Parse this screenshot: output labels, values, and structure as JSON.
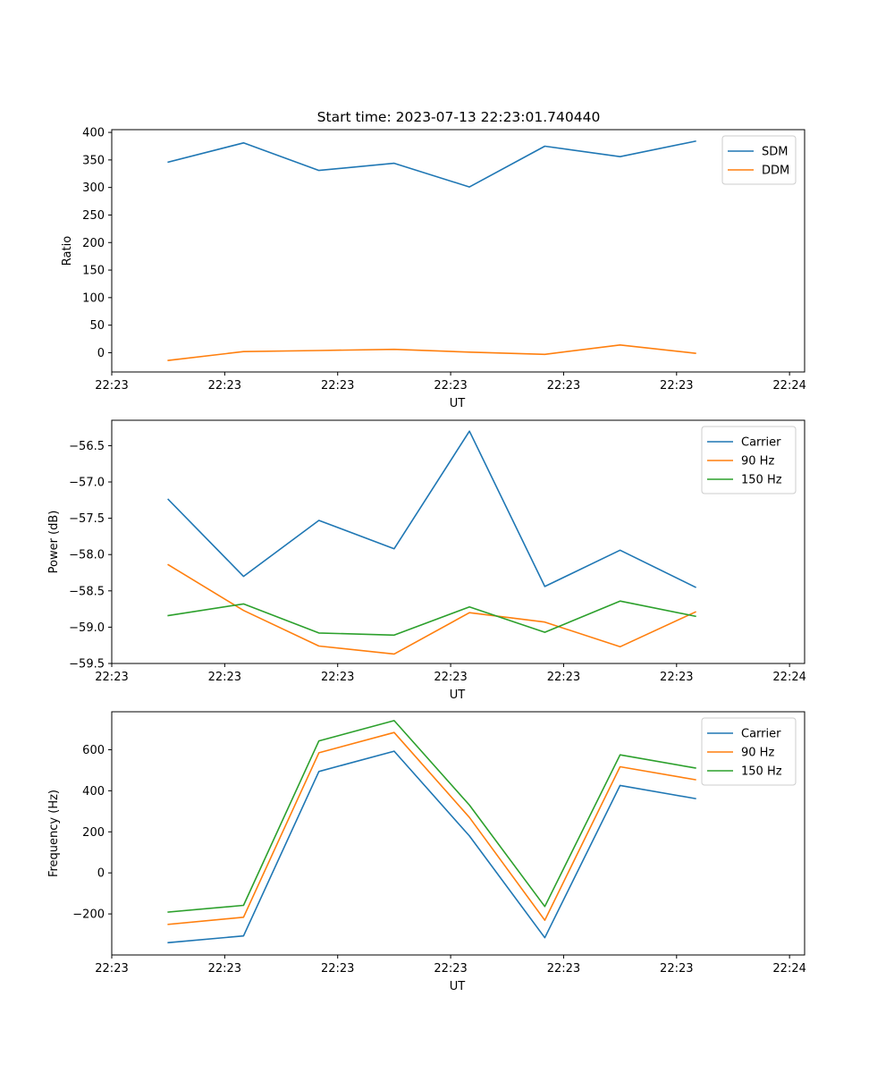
{
  "figure_title": "Start time: 2023-07-13 22:23:01.740440",
  "colors": {
    "blue": "#1f77b4",
    "orange": "#ff7f0e",
    "green": "#2ca02c"
  },
  "chart_data": [
    {
      "type": "line",
      "title": "Start time: 2023-07-13 22:23:01.740440",
      "xlabel": "UT",
      "ylabel": "Ratio",
      "xlim": [
        0,
        9.2
      ],
      "ylim": [
        -35,
        405
      ],
      "x": [
        0.75,
        1.75,
        2.75,
        3.75,
        4.75,
        5.75,
        6.75,
        7.75
      ],
      "xticks": [
        {
          "value": 0,
          "label": "22:23"
        },
        {
          "value": 1.5,
          "label": "22:23"
        },
        {
          "value": 3,
          "label": "22:23"
        },
        {
          "value": 4.5,
          "label": "22:23"
        },
        {
          "value": 6,
          "label": "22:23"
        },
        {
          "value": 7.5,
          "label": "22:23"
        },
        {
          "value": 9,
          "label": "22:24"
        }
      ],
      "yticks": [
        {
          "value": 400,
          "label": "400"
        },
        {
          "value": 350,
          "label": "350"
        },
        {
          "value": 300,
          "label": "300"
        },
        {
          "value": 250,
          "label": "250"
        },
        {
          "value": 200,
          "label": "200"
        },
        {
          "value": 150,
          "label": "150"
        },
        {
          "value": 100,
          "label": "100"
        },
        {
          "value": 50,
          "label": "50"
        },
        {
          "value": 0,
          "label": "0"
        }
      ],
      "legend": "top-right",
      "series": [
        {
          "name": "SDM",
          "color": "blue",
          "values": [
            346,
            381,
            331,
            344,
            301,
            375,
            356,
            384
          ]
        },
        {
          "name": "DDM",
          "color": "orange",
          "values": [
            -14,
            2,
            4,
            6,
            1,
            -3,
            14,
            -1
          ]
        }
      ]
    },
    {
      "type": "line",
      "xlabel": "UT",
      "ylabel": "Power (dB)",
      "xlim": [
        0,
        9.2
      ],
      "ylim": [
        -59.5,
        -56.15
      ],
      "x": [
        0.75,
        1.75,
        2.75,
        3.75,
        4.75,
        5.75,
        6.75,
        7.75
      ],
      "xticks": [
        {
          "value": 0,
          "label": "22:23"
        },
        {
          "value": 1.5,
          "label": "22:23"
        },
        {
          "value": 3,
          "label": "22:23"
        },
        {
          "value": 4.5,
          "label": "22:23"
        },
        {
          "value": 6,
          "label": "22:23"
        },
        {
          "value": 7.5,
          "label": "22:23"
        },
        {
          "value": 9,
          "label": "22:24"
        }
      ],
      "yticks": [
        {
          "value": -56.5,
          "label": "−56.5"
        },
        {
          "value": -57.0,
          "label": "−57.0"
        },
        {
          "value": -57.5,
          "label": "−57.5"
        },
        {
          "value": -58.0,
          "label": "−58.0"
        },
        {
          "value": -58.5,
          "label": "−58.5"
        },
        {
          "value": -59.0,
          "label": "−59.0"
        },
        {
          "value": -59.5,
          "label": "−59.5"
        }
      ],
      "legend": "top-right",
      "series": [
        {
          "name": "Carrier",
          "color": "blue",
          "values": [
            -57.24,
            -58.3,
            -57.53,
            -57.92,
            -56.3,
            -58.44,
            -57.94,
            -58.45
          ]
        },
        {
          "name": "90 Hz",
          "color": "orange",
          "values": [
            -58.14,
            -58.77,
            -59.26,
            -59.37,
            -58.8,
            -58.93,
            -59.27,
            -58.79
          ]
        },
        {
          "name": "150 Hz",
          "color": "green",
          "values": [
            -58.84,
            -58.68,
            -59.08,
            -59.11,
            -58.72,
            -59.07,
            -58.64,
            -58.85
          ]
        }
      ]
    },
    {
      "type": "line",
      "xlabel": "UT",
      "ylabel": "Frequency (Hz)",
      "xlim": [
        0,
        9.2
      ],
      "ylim": [
        -400,
        785
      ],
      "x": [
        0.75,
        1.75,
        2.75,
        3.75,
        4.75,
        5.75,
        6.75,
        7.75
      ],
      "xticks": [
        {
          "value": 0,
          "label": "22:23"
        },
        {
          "value": 1.5,
          "label": "22:23"
        },
        {
          "value": 3,
          "label": "22:23"
        },
        {
          "value": 4.5,
          "label": "22:23"
        },
        {
          "value": 6,
          "label": "22:23"
        },
        {
          "value": 7.5,
          "label": "22:23"
        },
        {
          "value": 9,
          "label": "22:24"
        }
      ],
      "yticks": [
        {
          "value": 600,
          "label": "600"
        },
        {
          "value": 400,
          "label": "400"
        },
        {
          "value": 200,
          "label": "200"
        },
        {
          "value": 0,
          "label": "0"
        },
        {
          "value": -200,
          "label": "−200"
        }
      ],
      "legend": "top-right",
      "series": [
        {
          "name": "Carrier",
          "color": "blue",
          "values": [
            -340,
            -307,
            494,
            593,
            180,
            -316,
            426,
            362
          ]
        },
        {
          "name": "90 Hz",
          "color": "orange",
          "values": [
            -251,
            -216,
            585,
            684,
            270,
            -231,
            517,
            454
          ]
        },
        {
          "name": "150 Hz",
          "color": "green",
          "values": [
            -191,
            -158,
            643,
            742,
            330,
            -164,
            575,
            511
          ]
        }
      ]
    }
  ]
}
